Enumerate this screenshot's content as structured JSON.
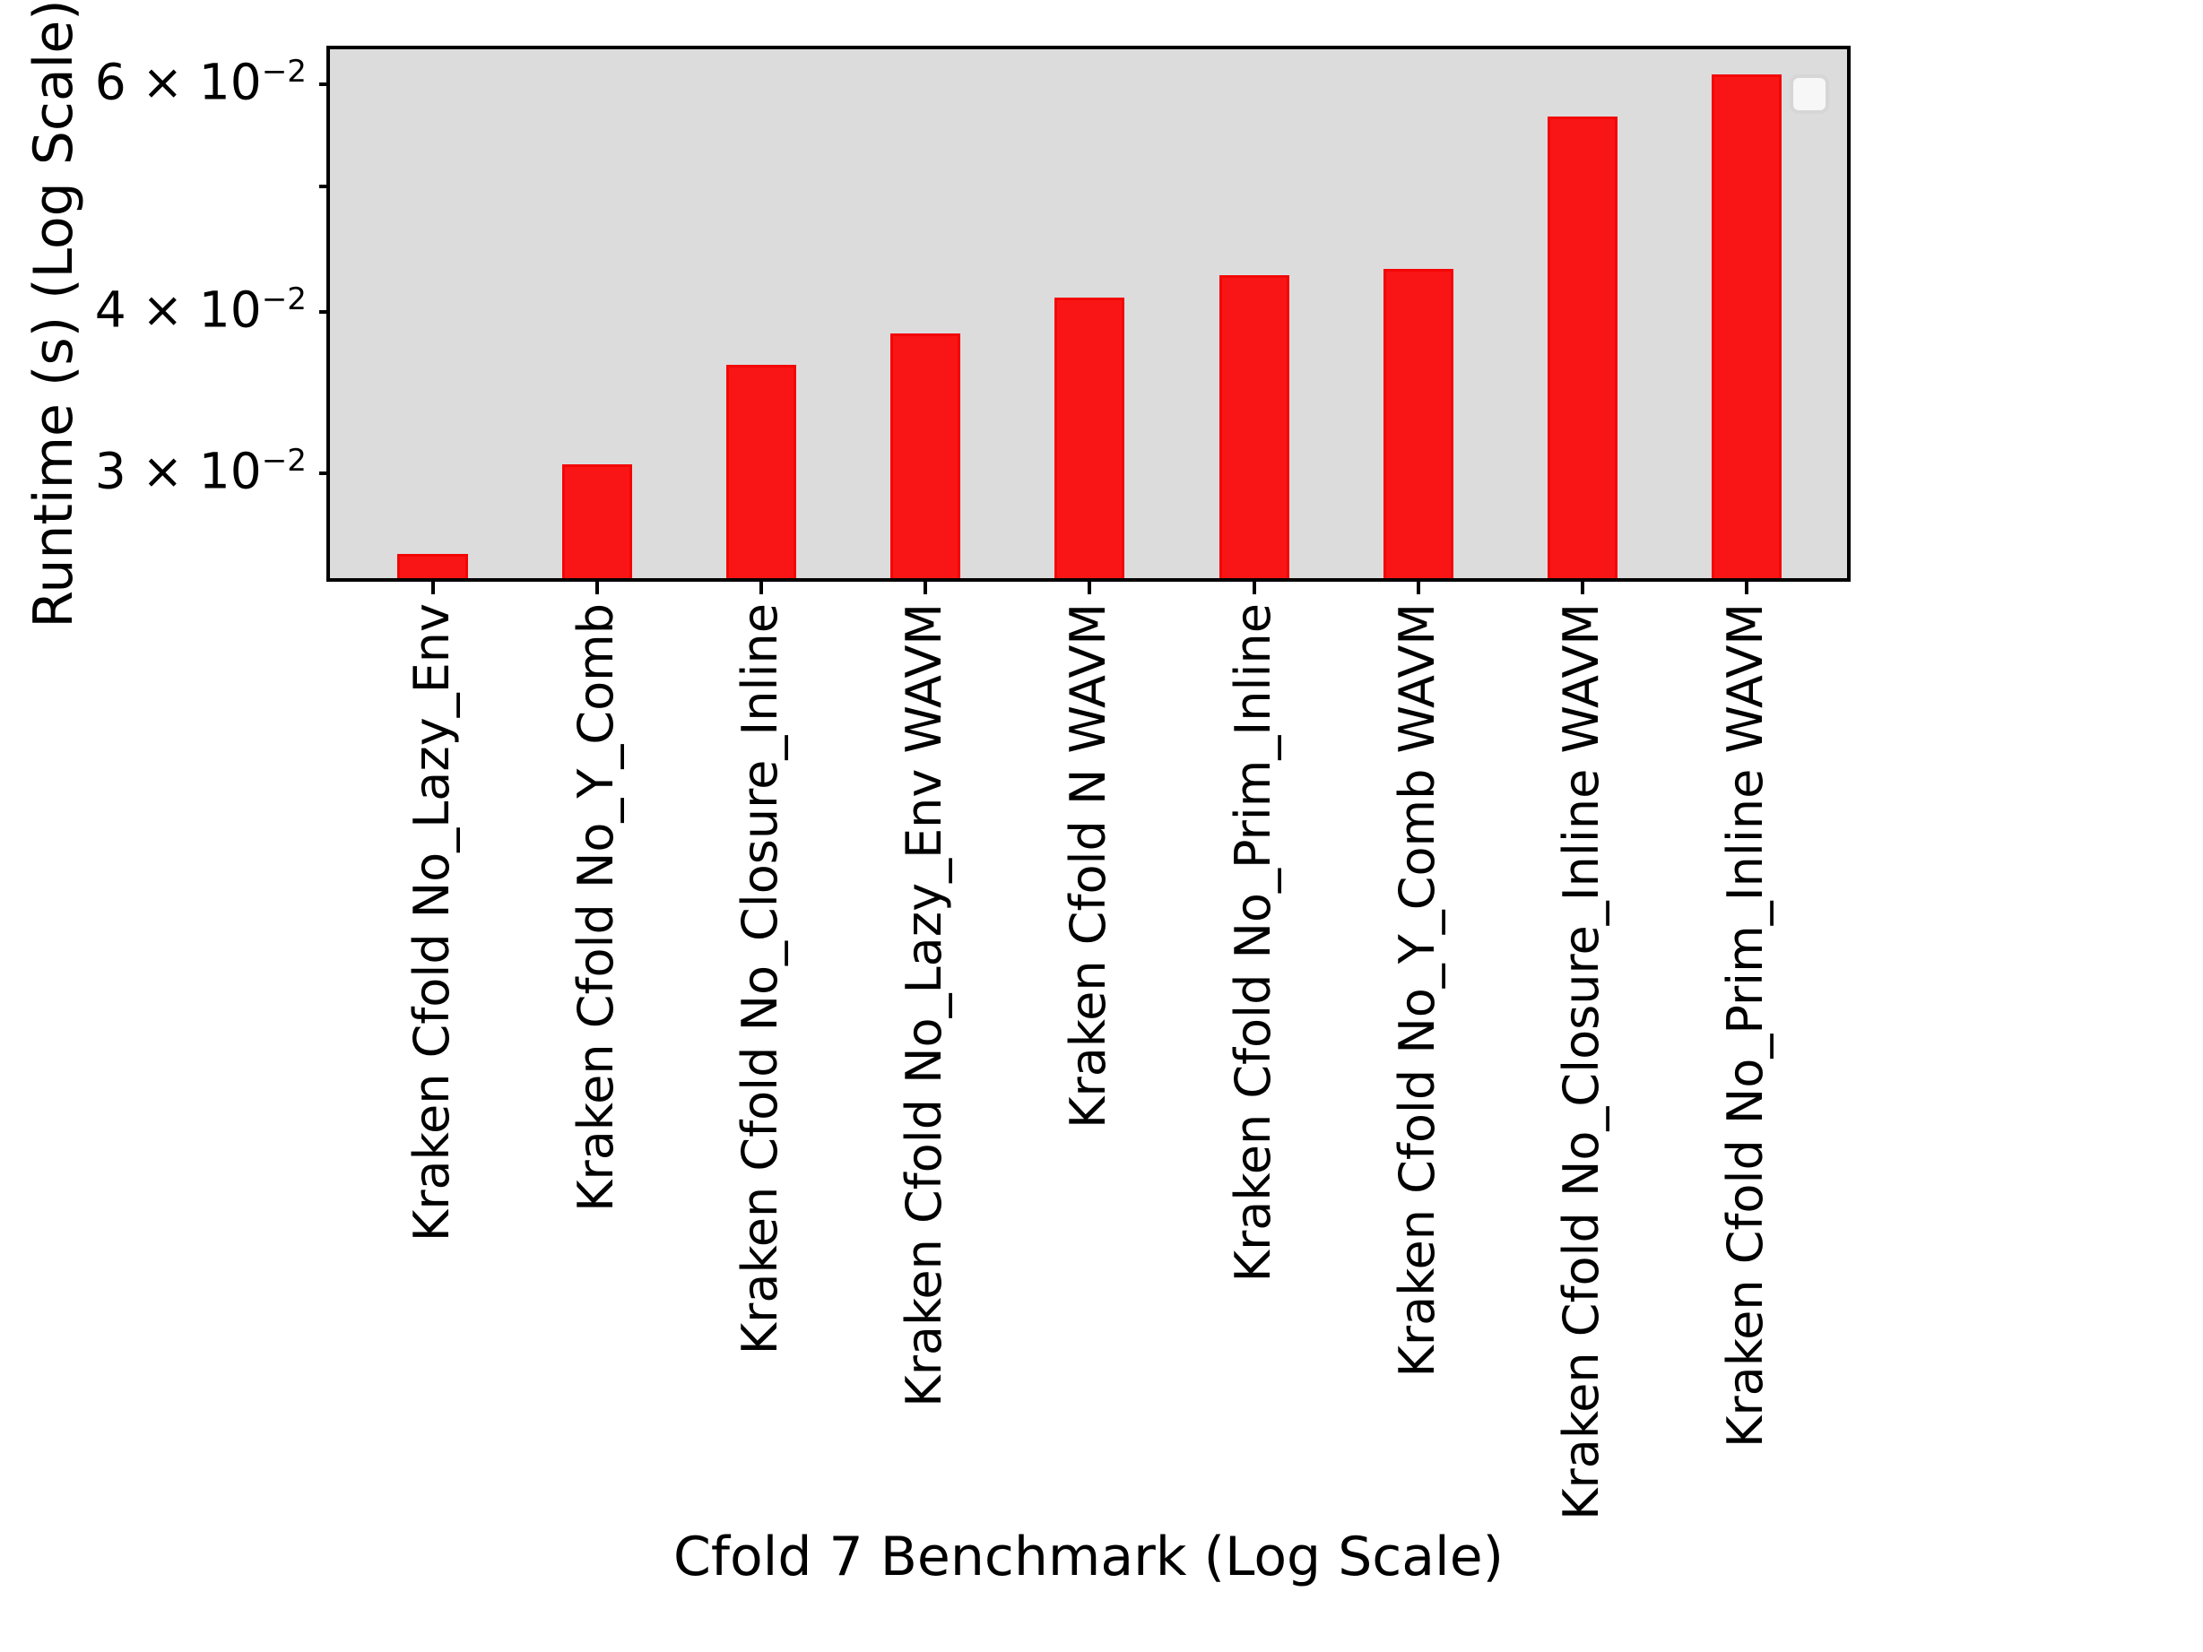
{
  "figure": {
    "xlabel": "Cfold 7 Benchmark (Log Scale)",
    "ylabel": "Runtime (s) (Log Scale)"
  },
  "chart_data": {
    "type": "bar",
    "title": "",
    "xlabel": "Cfold 7 Benchmark (Log Scale)",
    "ylabel": "Runtime (s) (Log Scale)",
    "yscale": "log",
    "ylim": [
      0.0249,
      0.0638
    ],
    "categories": [
      "Kraken Cfold No_Lazy_Env",
      "Kraken Cfold No_Y_Comb",
      "Kraken Cfold No_Closure_Inline",
      "Kraken Cfold No_Lazy_Env WAVM",
      "Kraken Cfold N WAVM",
      "Kraken Cfold No_Prim_Inline",
      "Kraken Cfold No_Y_Comb WAVM",
      "Kraken Cfold No_Closure_Inline WAVM",
      "Kraken Cfold No_Prim_Inline WAVM"
    ],
    "values": [
      0.026,
      0.0305,
      0.0364,
      0.0385,
      0.041,
      0.0427,
      0.0432,
      0.0566,
      0.061
    ],
    "y_major_ticks": [
      {
        "value": 0.06,
        "coef": "6",
        "base": "10",
        "exp": "−2",
        "times": "×"
      },
      {
        "value": 0.04,
        "coef": "4",
        "base": "10",
        "exp": "−2",
        "times": "×"
      },
      {
        "value": 0.03,
        "coef": "3",
        "base": "10",
        "exp": "−2",
        "times": "×"
      }
    ],
    "y_minor_ticks": [
      0.05
    ],
    "grid": false,
    "legend": {
      "present": true,
      "entries": [],
      "position": "upper right"
    },
    "colors": {
      "bar_fill": "#f91515",
      "bar_edge": "#f30606",
      "plot_background": "#dcdcdc",
      "figure_background": "#ffffff",
      "axis": "#000000",
      "legend_fill": "#f7f7f7",
      "legend_border": "#d6d6d6"
    },
    "xlim_units": [
      -0.625,
      8.61
    ],
    "bar_width_units": 0.426
  }
}
